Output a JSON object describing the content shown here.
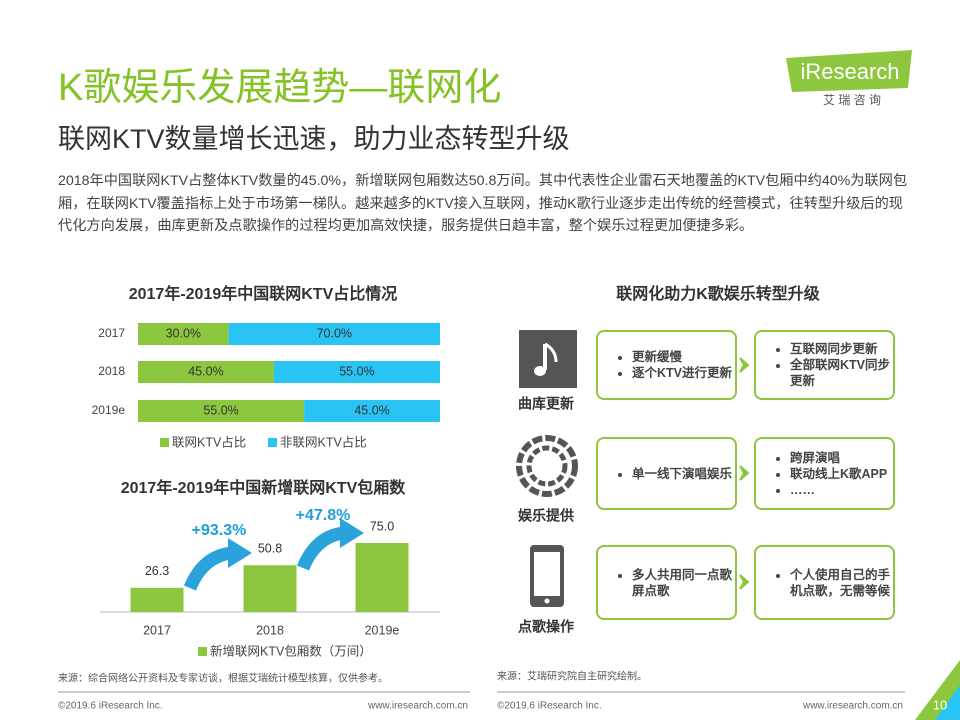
{
  "header": {
    "title": "K歌娱乐发展趋势—联网化",
    "subtitle": "联网KTV数量增长迅速，助力业态转型升级",
    "logo": "iResearch",
    "logo_cn": "艾 瑞 咨 询"
  },
  "summary": "2018年中国联网KTV占整体KTV数量的45.0%，新增联网包厢数达50.8万间。其中代表性企业雷石天地覆盖的KTV包厢中约40%为联网包厢，在联网KTV覆盖指标上处于市场第一梯队。越来越多的KTV接入互联网，推动K歌行业逐步走出传统的经营模式，往转型升级后的现代化方向发展，曲库更新及点歌操作的过程均更加高效快捷，服务提供日趋丰富，整个娱乐过程更加便捷多彩。",
  "chart_data": [
    {
      "type": "stacked_bar_h",
      "title": "2017年-2019年中国联网KTV占比情况",
      "categories": [
        "2017",
        "2018",
        "2019e"
      ],
      "series": [
        {
          "name": "联网KTV占比",
          "color": "#8dc63f",
          "values": [
            30,
            45,
            55
          ],
          "value_labels": [
            "30.0%",
            "45.0%",
            "55.0%"
          ]
        },
        {
          "name": "非联网KTV占比",
          "color": "#29c4f4",
          "values": [
            70,
            55,
            45
          ],
          "value_labels": [
            "70.0%",
            "55.0%",
            "45.0%"
          ]
        }
      ]
    },
    {
      "type": "bar",
      "title": "2017年-2019年中国新增联网KTV包厢数",
      "categories": [
        "2017",
        "2018",
        "2019e"
      ],
      "series": [
        {
          "name": "新增联网KTV包厢数（万间）",
          "color": "#8dc63f",
          "values": [
            26.3,
            50.8,
            75.0
          ],
          "value_labels": [
            "26.3",
            "50.8",
            "75.0"
          ]
        }
      ],
      "annotations": [
        "+93.3%",
        "+47.8%"
      ]
    }
  ],
  "diagram": {
    "title": "联网化助力K歌娱乐转型升级",
    "rows": [
      {
        "label": "曲库更新",
        "before": [
          "更新缓慢",
          "逐个KTV进行更新"
        ],
        "after": [
          "互联网同步更新",
          "全部联网KTV同步更新"
        ]
      },
      {
        "label": "娱乐提供",
        "before": [
          "单一线下演唱娱乐"
        ],
        "after": [
          "跨屏演唱",
          "联动线上K歌APP",
          "……"
        ]
      },
      {
        "label": "点歌操作",
        "before": [
          "多人共用同一点歌屏点歌"
        ],
        "after": [
          "个人使用自己的手机点歌，无需等候"
        ]
      }
    ]
  },
  "footer": {
    "sources": [
      "来源：综合网络公开资料及专家访谈，根据艾瑞统计模型核算，仅供参考。",
      "来源：艾瑞研究院自主研究绘制。"
    ],
    "copyright": [
      "©2019.6 iResearch Inc.",
      "©2019.6 iResearch Inc."
    ],
    "urls": [
      "www.iresearch.com.cn",
      "www.iresearch.com.cn"
    ],
    "page": "10"
  }
}
